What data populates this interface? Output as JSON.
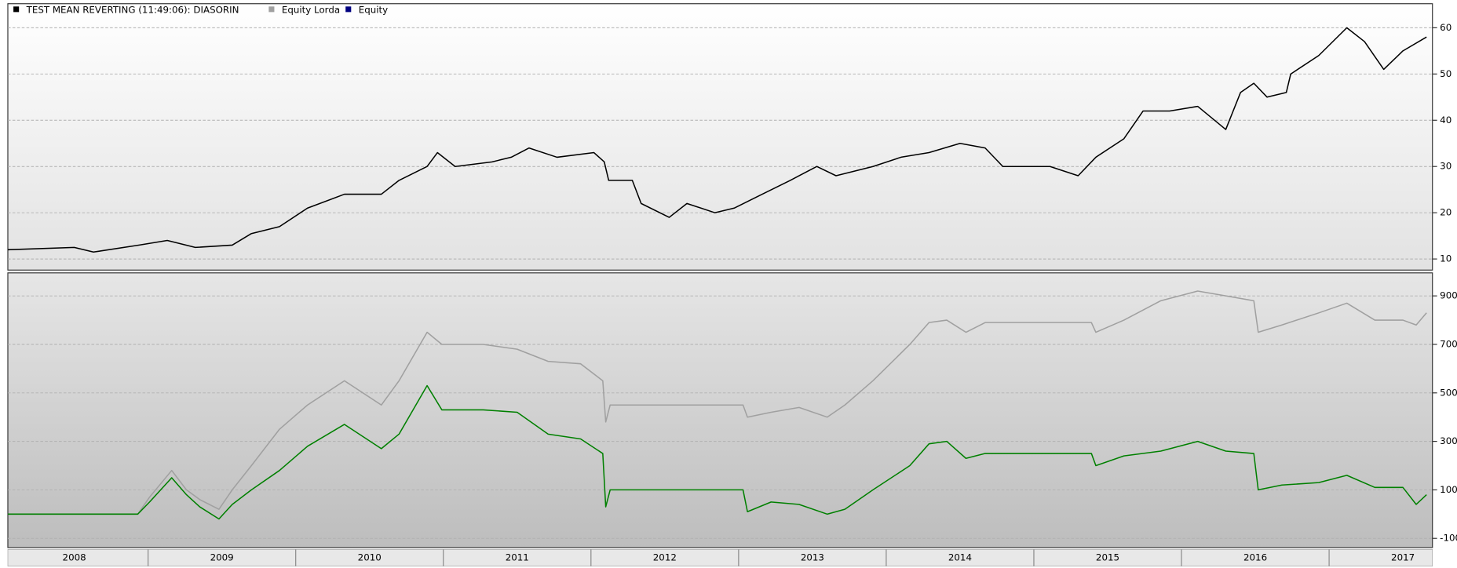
{
  "chart_data": [
    {
      "type": "line",
      "series": [
        {
          "name": "TEST MEAN REVERTING (11:49:06): DIASORIN",
          "color": "#000000",
          "x": [
            2008.05,
            2008.5,
            2008.63,
            2008.94,
            2009.13,
            2009.32,
            2009.57,
            2009.7,
            2009.89,
            2010.08,
            2010.33,
            2010.58,
            2010.7,
            2010.89,
            2010.96,
            2011.08,
            2011.33,
            2011.46,
            2011.58,
            2011.77,
            2012.02,
            2012.09,
            2012.12,
            2012.28,
            2012.34,
            2012.53,
            2012.65,
            2012.84,
            2012.97,
            2013.16,
            2013.35,
            2013.53,
            2013.66,
            2013.91,
            2014.1,
            2014.29,
            2014.5,
            2014.67,
            2014.79,
            2014.92,
            2015.11,
            2015.3,
            2015.42,
            2015.61,
            2015.74,
            2015.92,
            2016.11,
            2016.3,
            2016.4,
            2016.49,
            2016.58,
            2016.71,
            2016.74,
            2016.93,
            2017.12,
            2017.24,
            2017.37,
            2017.5,
            2017.66
          ],
          "values": [
            12,
            12.5,
            11.5,
            13,
            14,
            12.5,
            13,
            15.5,
            17,
            21,
            24,
            24,
            27,
            30,
            33,
            30,
            31,
            32,
            34,
            32,
            33,
            31,
            27,
            27,
            22,
            19,
            22,
            20,
            21,
            24,
            27,
            30,
            28,
            30,
            32,
            33,
            35,
            34,
            30,
            30,
            30,
            28,
            32,
            36,
            42,
            42,
            43,
            38,
            46,
            48,
            45,
            46,
            50,
            54,
            60,
            57,
            51,
            55,
            58
          ]
        }
      ],
      "xlim": [
        2008.05,
        2017.7
      ],
      "ylim": [
        7.6,
        65.2
      ],
      "yticks": [
        10,
        20,
        30,
        40,
        50,
        60
      ],
      "grid": true
    },
    {
      "type": "line",
      "x": [
        2008.05,
        2008.93,
        2009.01,
        2009.16,
        2009.26,
        2009.35,
        2009.48,
        2009.57,
        2009.7,
        2009.89,
        2010.08,
        2010.33,
        2010.58,
        2010.7,
        2010.89,
        2010.99,
        2011.27,
        2011.5,
        2011.71,
        2011.93,
        2012.08,
        2012.1,
        2012.13,
        2013.03,
        2013.06,
        2013.22,
        2013.41,
        2013.6,
        2013.72,
        2013.91,
        2014.16,
        2014.29,
        2014.41,
        2014.54,
        2014.67,
        2015.39,
        2015.42,
        2015.61,
        2015.86,
        2016.11,
        2016.3,
        2016.49,
        2016.52,
        2016.68,
        2016.93,
        2017.12,
        2017.31,
        2017.5,
        2017.59,
        2017.66
      ],
      "series": [
        {
          "name": "Equity Lorda",
          "color": "#a0a0a0",
          "legend_color": "#a0a0a0",
          "values": [
            0,
            0,
            70,
            180,
            100,
            60,
            20,
            100,
            200,
            350,
            450,
            550,
            450,
            550,
            750,
            700,
            700,
            680,
            630,
            620,
            550,
            380,
            450,
            450,
            400,
            420,
            440,
            400,
            450,
            550,
            700,
            790,
            800,
            750,
            790,
            790,
            750,
            800,
            880,
            920,
            900,
            880,
            750,
            780,
            830,
            870,
            800,
            800,
            780,
            830
          ]
        },
        {
          "name": "Equity",
          "color": "#008000",
          "legend_color": "#000080",
          "values": [
            0,
            0,
            50,
            150,
            80,
            30,
            -20,
            40,
            100,
            180,
            280,
            370,
            270,
            330,
            530,
            430,
            430,
            420,
            330,
            310,
            250,
            30,
            100,
            100,
            10,
            50,
            40,
            0,
            20,
            100,
            200,
            290,
            300,
            230,
            250,
            250,
            200,
            240,
            260,
            300,
            260,
            250,
            100,
            120,
            130,
            160,
            110,
            110,
            40,
            80
          ]
        }
      ],
      "xlim": [
        2008.05,
        2017.7
      ],
      "ylim": [
        -138,
        995
      ],
      "yticks": [
        -100,
        100,
        300,
        500,
        700,
        900
      ],
      "xticks": [
        {
          "value": 2008.5,
          "label": "2008"
        },
        {
          "value": 2009.5,
          "label": "2009"
        },
        {
          "value": 2010.5,
          "label": "2010"
        },
        {
          "value": 2011.5,
          "label": "2011"
        },
        {
          "value": 2012.5,
          "label": "2012"
        },
        {
          "value": 2013.5,
          "label": "2013"
        },
        {
          "value": 2014.5,
          "label": "2014"
        },
        {
          "value": 2015.5,
          "label": "2015"
        },
        {
          "value": 2016.5,
          "label": "2016"
        },
        {
          "value": 2017.5,
          "label": "2017"
        }
      ],
      "grid": true
    }
  ]
}
